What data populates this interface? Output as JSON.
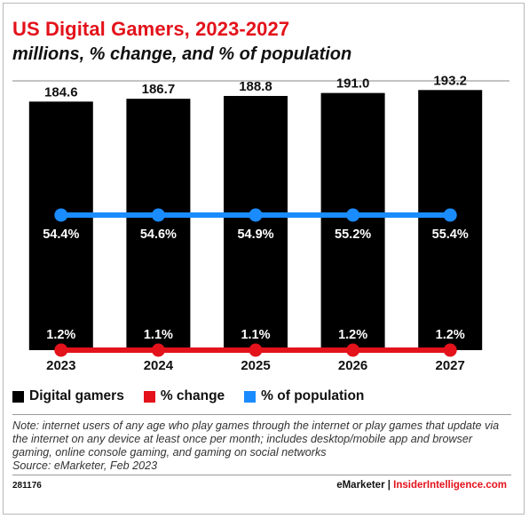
{
  "header": {
    "title": "US Digital Gamers, 2023-2027",
    "subtitle": "millions, % change, and % of population"
  },
  "legend": [
    {
      "label": "Digital gamers",
      "color": "#000000"
    },
    {
      "label": "% change",
      "color": "#e3121b"
    },
    {
      "label": "% of population",
      "color": "#1a8cff"
    }
  ],
  "chart_data": {
    "type": "bar",
    "categories": [
      "2023",
      "2024",
      "2025",
      "2026",
      "2027"
    ],
    "series": [
      {
        "name": "Digital gamers",
        "type": "bar",
        "color": "#000000",
        "values": [
          184.6,
          186.7,
          188.8,
          191.0,
          193.2
        ],
        "labels": [
          "184.6",
          "186.7",
          "188.8",
          "191.0",
          "193.2"
        ]
      },
      {
        "name": "% of population",
        "type": "line",
        "color": "#1a8cff",
        "values": [
          54.4,
          54.6,
          54.9,
          55.2,
          55.4
        ],
        "labels": [
          "54.4%",
          "54.6%",
          "54.9%",
          "55.2%",
          "55.4%"
        ]
      },
      {
        "name": "% change",
        "type": "line",
        "color": "#e3121b",
        "values": [
          1.2,
          1.1,
          1.1,
          1.2,
          1.2
        ],
        "labels": [
          "1.2%",
          "1.1%",
          "1.1%",
          "1.2%",
          "1.2%"
        ]
      }
    ],
    "ylim": [
      0,
      200
    ]
  },
  "footer": {
    "note": "Note: internet users of any age who play games through the internet or play games that update via the internet on any device at least once per month; includes desktop/mobile app and browser gaming, online console gaming, and gaming on social networks",
    "source": "Source: eMarketer, Feb 2023",
    "chart_id": "281176",
    "brand_primary": "eMarketer",
    "brand_separator": "|",
    "brand_secondary": "InsiderIntelligence.com"
  }
}
